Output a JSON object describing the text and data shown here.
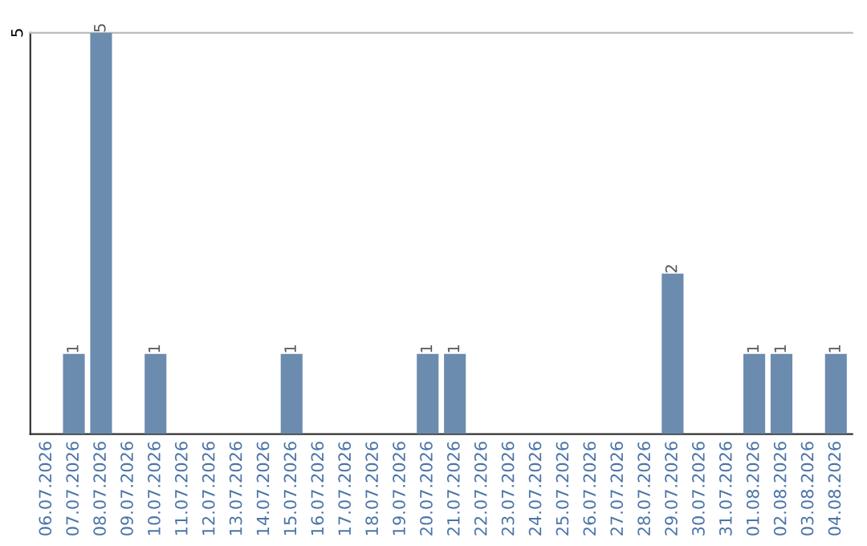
{
  "chart_data": {
    "type": "bar",
    "categories": [
      "06.07.2026",
      "07.07.2026",
      "08.07.2026",
      "09.07.2026",
      "10.07.2026",
      "11.07.2026",
      "12.07.2026",
      "13.07.2026",
      "14.07.2026",
      "15.07.2026",
      "16.07.2026",
      "17.07.2026",
      "18.07.2026",
      "19.07.2026",
      "20.07.2026",
      "21.07.2026",
      "22.07.2026",
      "23.07.2026",
      "24.07.2026",
      "25.07.2026",
      "26.07.2026",
      "27.07.2026",
      "28.07.2026",
      "29.07.2026",
      "30.07.2026",
      "31.07.2026",
      "01.08.2026",
      "02.08.2026",
      "03.08.2026",
      "04.08.2026"
    ],
    "values": [
      0,
      1,
      5,
      0,
      1,
      0,
      0,
      0,
      0,
      1,
      0,
      0,
      0,
      0,
      1,
      1,
      0,
      0,
      0,
      0,
      0,
      0,
      0,
      2,
      0,
      0,
      1,
      1,
      0,
      1
    ],
    "value_labels": [
      null,
      "1",
      "5",
      null,
      "1",
      null,
      null,
      null,
      null,
      "1",
      null,
      null,
      null,
      null,
      "1",
      "1",
      null,
      null,
      null,
      null,
      null,
      null,
      null,
      "2",
      null,
      null,
      "1",
      "1",
      null,
      "1"
    ],
    "color": "#6b8cae",
    "ylim": [
      0,
      5
    ],
    "yticks": [
      5
    ]
  }
}
